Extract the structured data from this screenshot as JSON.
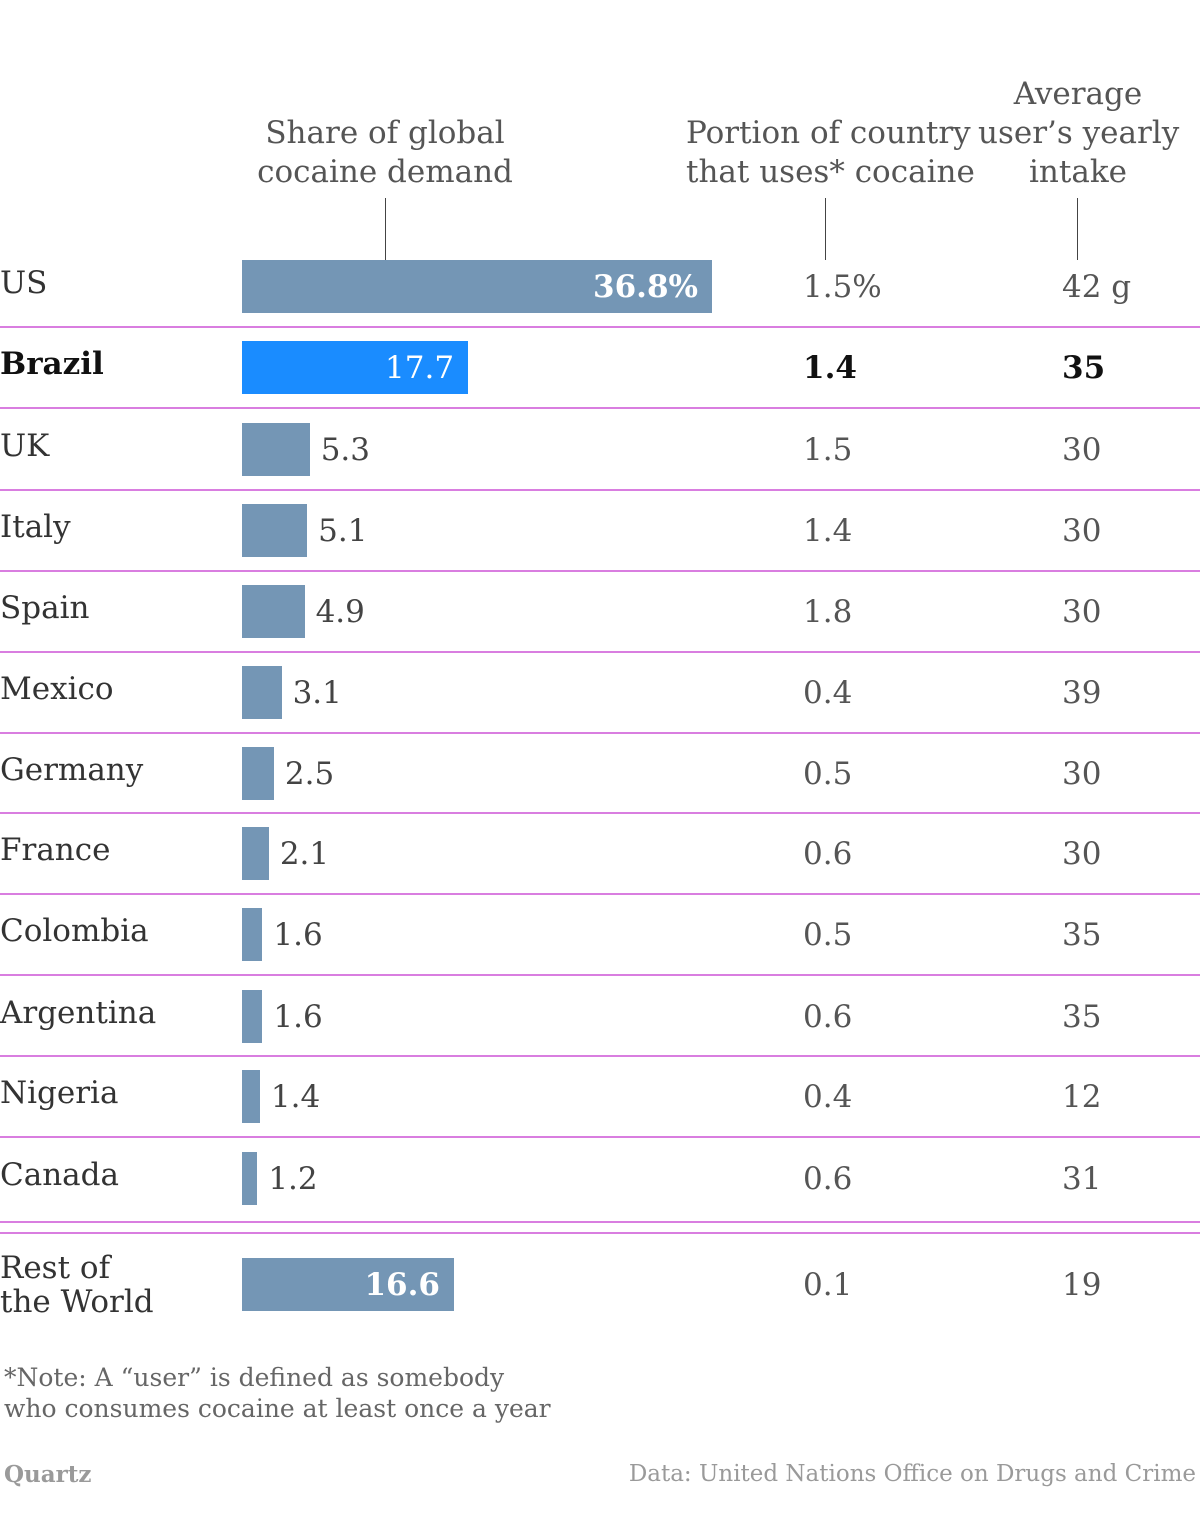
{
  "chart_data": {
    "type": "bar",
    "columns": {
      "share": [
        "Share of global",
        "cocaine demand"
      ],
      "portion": [
        "Portion of country",
        "that uses* cocaine"
      ],
      "intake": [
        "Average",
        "user’s yearly",
        "intake"
      ]
    },
    "rows": [
      {
        "country": [
          "US"
        ],
        "share": 36.8,
        "share_label": "36.8%",
        "portion": "1.5%",
        "intake": "42 g",
        "highlight": false
      },
      {
        "country": [
          "Brazil"
        ],
        "share": 17.7,
        "share_label": "17.7",
        "portion": "1.4",
        "intake": "35",
        "highlight": true
      },
      {
        "country": [
          "UK"
        ],
        "share": 5.3,
        "share_label": "5.3",
        "portion": "1.5",
        "intake": "30",
        "highlight": false
      },
      {
        "country": [
          "Italy"
        ],
        "share": 5.1,
        "share_label": "5.1",
        "portion": "1.4",
        "intake": "30",
        "highlight": false
      },
      {
        "country": [
          "Spain"
        ],
        "share": 4.9,
        "share_label": "4.9",
        "portion": "1.8",
        "intake": "30",
        "highlight": false
      },
      {
        "country": [
          "Mexico"
        ],
        "share": 3.1,
        "share_label": "3.1",
        "portion": "0.4",
        "intake": "39",
        "highlight": false
      },
      {
        "country": [
          "Germany"
        ],
        "share": 2.5,
        "share_label": "2.5",
        "portion": "0.5",
        "intake": "30",
        "highlight": false
      },
      {
        "country": [
          "France"
        ],
        "share": 2.1,
        "share_label": "2.1",
        "portion": "0.6",
        "intake": "30",
        "highlight": false
      },
      {
        "country": [
          "Colombia"
        ],
        "share": 1.6,
        "share_label": "1.6",
        "portion": "0.5",
        "intake": "35",
        "highlight": false
      },
      {
        "country": [
          "Argentina"
        ],
        "share": 1.6,
        "share_label": "1.6",
        "portion": "0.6",
        "intake": "35",
        "highlight": false
      },
      {
        "country": [
          "Nigeria"
        ],
        "share": 1.4,
        "share_label": "1.4",
        "portion": "0.4",
        "intake": "12",
        "highlight": false
      },
      {
        "country": [
          "Canada"
        ],
        "share": 1.2,
        "share_label": "1.2",
        "portion": "0.6",
        "intake": "31",
        "highlight": false
      },
      {
        "country": [
          "Rest of",
          "the World"
        ],
        "share": 16.6,
        "share_label": "16.6",
        "portion": "0.1",
        "intake": "19",
        "highlight": false
      }
    ],
    "xlim": [
      0,
      36.8
    ],
    "note": [
      "*Note: A “user” is defined as somebody",
      "who consumes cocaine at least once a year"
    ],
    "brand": "Quartz",
    "source": "Data: United Nations Office on Drugs and Crime"
  },
  "colors": {
    "bar": "#7496b5",
    "highlight_bar": "#1a8cff",
    "row_line": "#d97ee0"
  }
}
